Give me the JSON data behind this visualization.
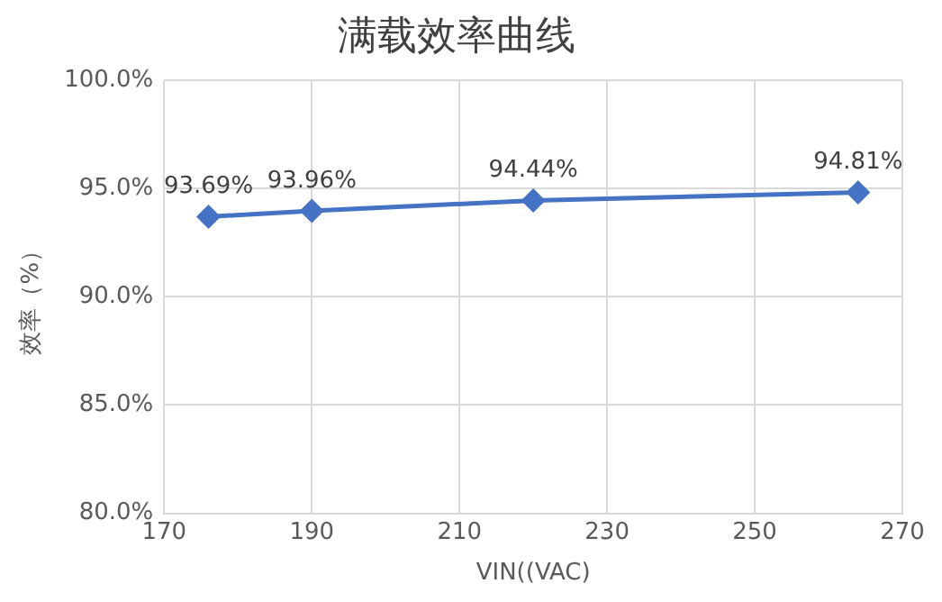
{
  "chart_data": {
    "type": "line",
    "title": "满载效率曲线",
    "xlabel": "VIN((VAC)",
    "ylabel": "效率（%）",
    "x": [
      176,
      190,
      220,
      264
    ],
    "series": [
      {
        "color": "#4472c4",
        "values": [
          93.69,
          93.96,
          94.44,
          94.81
        ],
        "value_labels": [
          "93.69%",
          "93.96%",
          "94.44%",
          "94.81%"
        ]
      }
    ],
    "xlim": [
      170,
      270
    ],
    "xticks": [
      170,
      190,
      210,
      230,
      250,
      270
    ],
    "ylim": [
      80,
      100
    ],
    "yticks": [
      {
        "value": 80,
        "label": "80.0%"
      },
      {
        "value": 85,
        "label": "85.0%"
      },
      {
        "value": 90,
        "label": "90.0%"
      },
      {
        "value": 95,
        "label": "95.0%"
      },
      {
        "value": 100,
        "label": "100.0%"
      }
    ],
    "grid": true,
    "legend": false,
    "marker": "diamond",
    "line_style": "solid"
  }
}
